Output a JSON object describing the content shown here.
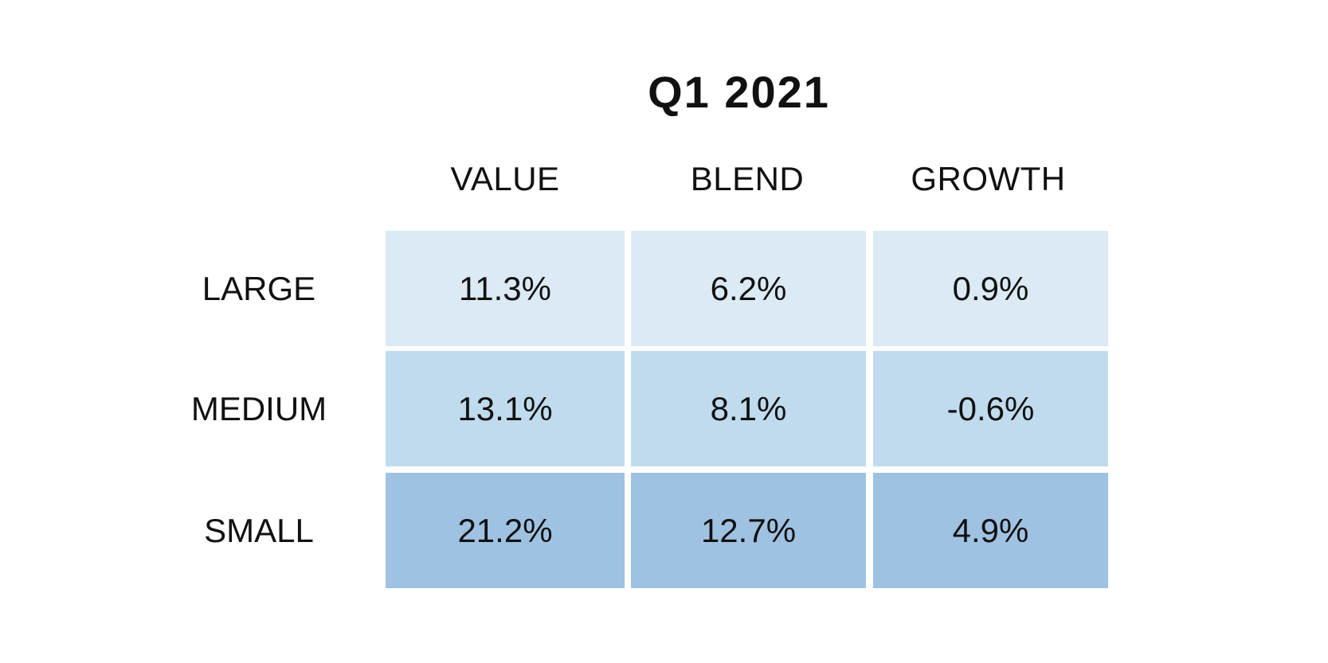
{
  "chart_data": {
    "type": "heatmap",
    "title": "Q1 2021",
    "columns": [
      "VALUE",
      "BLEND",
      "GROWTH"
    ],
    "rows": [
      "LARGE",
      "MEDIUM",
      "SMALL"
    ],
    "values": [
      [
        11.3,
        6.2,
        0.9
      ],
      [
        13.1,
        8.1,
        -0.6
      ],
      [
        21.2,
        12.7,
        4.9
      ]
    ],
    "labels": [
      [
        "11.3%",
        "6.2%",
        "0.9%"
      ],
      [
        "13.1%",
        "8.1%",
        "-0.6%"
      ],
      [
        "21.2%",
        "12.7%",
        "4.9%"
      ]
    ],
    "row_colors": [
      "#dbeaf4",
      "#c0dbee",
      "#9fc2e2"
    ]
  }
}
